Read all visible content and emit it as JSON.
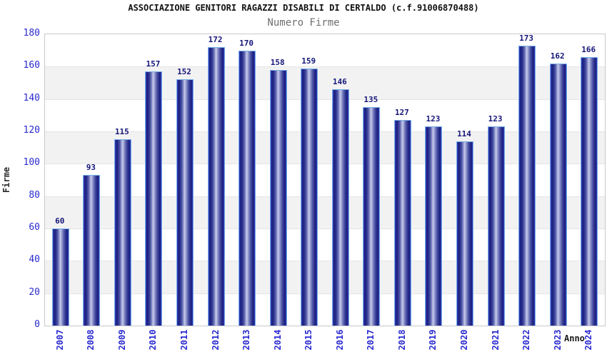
{
  "header": {
    "title": "ASSOCIAZIONE GENITORI RAGAZZI DISABILI DI CERTALDO (c.f.91006870488)",
    "subtitle": "Numero Firme"
  },
  "chart_data": {
    "type": "bar",
    "title": "ASSOCIAZIONE GENITORI RAGAZZI DISABILI DI CERTALDO (c.f.91006870488)",
    "subtitle": "Numero Firme",
    "xlabel": "Anno",
    "ylabel": "Firme",
    "categories": [
      "2007",
      "2008",
      "2009",
      "2010",
      "2011",
      "2012",
      "2013",
      "2014",
      "2015",
      "2016",
      "2017",
      "2018",
      "2019",
      "2020",
      "2021",
      "2022",
      "2023",
      "2024"
    ],
    "values": [
      60,
      93,
      115,
      157,
      152,
      172,
      170,
      158,
      159,
      146,
      135,
      127,
      123,
      114,
      123,
      173,
      162,
      166
    ],
    "ylim": [
      0,
      180
    ],
    "ytick_step": 20,
    "yticks": [
      0,
      20,
      40,
      60,
      80,
      100,
      120,
      140,
      160,
      180
    ],
    "grid": true,
    "legend_position": "none",
    "background_bands": "alternating white/gray every 20 units",
    "value_labels_shown": true,
    "colors": {
      "bar_edge_highlight": "#74aee6",
      "bar_dark": "#1d2280",
      "bar_light_center": "#c9cdec",
      "bar_royal_rim": "#3a41c8",
      "tick_label": "#2a2ad0",
      "value_label": "#15157b",
      "axis_label": "#2b2b2b",
      "band_gray": "#f2f2f2",
      "grid_line": "#e4e4e4",
      "plot_border": "#c9c9c9",
      "title_color": "#111111",
      "subtitle_color": "#6e6e6e"
    }
  }
}
